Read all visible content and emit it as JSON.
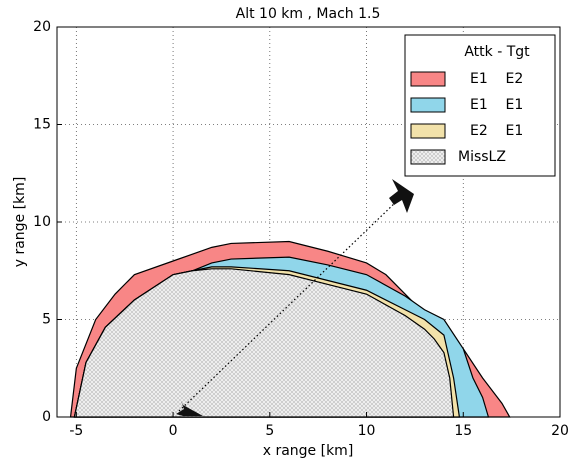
{
  "chart_data": {
    "type": "area",
    "title": "Alt 10 km , Mach 1.5",
    "xlabel": "x range [km]",
    "ylabel": "y range [km]",
    "xlim": [
      -6,
      20
    ],
    "ylim": [
      0,
      20
    ],
    "xticks": [
      -5,
      0,
      5,
      10,
      15,
      20
    ],
    "yticks": [
      0,
      5,
      10,
      15,
      20
    ],
    "grid": true,
    "legend_title": "Attk - Tgt",
    "legend": "upper right",
    "series": [
      {
        "name": "E1    E2",
        "color": "#f88686",
        "hatch": false,
        "x": [
          -5.3,
          -5,
          -4,
          -3,
          -2,
          0,
          2,
          3,
          6,
          8,
          10,
          11,
          12,
          13,
          14,
          15,
          16,
          17,
          17.4
        ],
        "values": [
          0,
          2.5,
          5,
          6.3,
          7.3,
          8,
          8.7,
          8.9,
          9,
          8.5,
          7.9,
          7.3,
          6.3,
          5.3,
          4.5,
          3.5,
          2,
          0.7,
          0
        ]
      },
      {
        "name": "E1    E1",
        "color": "#90d6ea",
        "hatch": false,
        "x": [
          -5.1,
          -4.5,
          -3.5,
          -2,
          0,
          1,
          2,
          3,
          6,
          8,
          10,
          12,
          13,
          14,
          15,
          15.5,
          16,
          16.3
        ],
        "values": [
          0,
          2.8,
          4.6,
          6,
          7.3,
          7.5,
          7.9,
          8.1,
          8.2,
          7.8,
          7.3,
          6.2,
          5.5,
          5,
          3.5,
          2,
          1,
          0
        ]
      },
      {
        "name": "E2    E1",
        "color": "#f2e2aa",
        "hatch": false,
        "x": [
          -5.1,
          -4.5,
          -3.5,
          -2,
          0,
          1,
          2,
          3,
          6,
          8,
          10,
          12,
          13,
          14,
          14.5,
          14.8
        ],
        "values": [
          0,
          2.8,
          4.6,
          6,
          7.3,
          7.5,
          7.7,
          7.7,
          7.5,
          7,
          6.5,
          5.5,
          5,
          4.2,
          2,
          0
        ]
      },
      {
        "name": "MissLZ",
        "color": "#ececec",
        "hatch": true,
        "x": [
          -5.1,
          -4.5,
          -3.5,
          -2,
          0,
          1,
          2,
          3,
          6,
          8,
          10,
          12,
          13,
          13.5,
          14,
          14.3,
          14.5
        ],
        "values": [
          0,
          2.8,
          4.6,
          6,
          7.3,
          7.5,
          7.6,
          7.6,
          7.3,
          6.8,
          6.3,
          5.2,
          4.5,
          4,
          3.3,
          2,
          0
        ]
      }
    ]
  }
}
